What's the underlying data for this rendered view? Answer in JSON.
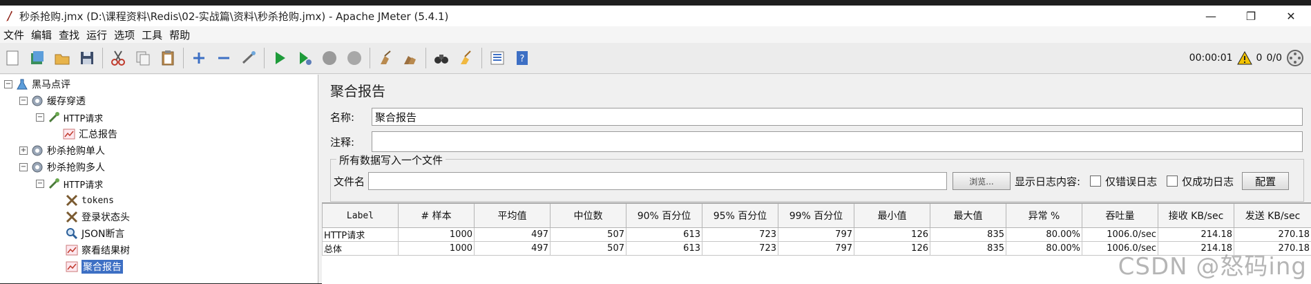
{
  "window": {
    "title": "秒杀抢购.jmx (D:\\课程资料\\Redis\\02-实战篇\\资料\\秒杀抢购.jmx) - Apache JMeter (5.4.1)",
    "minimize": "—",
    "maximize": "❐",
    "close": "✕"
  },
  "menu": [
    "文件",
    "编辑",
    "查找",
    "运行",
    "选项",
    "工具",
    "帮助"
  ],
  "toolbar": {
    "timer": "00:00:01",
    "warnings": "0",
    "threads": "0/0"
  },
  "tree": [
    {
      "label": "黑马点评",
      "icon": "flask-icon",
      "expander": "−"
    },
    {
      "label": "缓存穿透",
      "icon": "gear-icon",
      "expander": "−"
    },
    {
      "label": "HTTP请求",
      "icon": "pipette-icon",
      "expander": "−",
      "mono": true
    },
    {
      "label": "汇总报告",
      "icon": "chart-icon"
    },
    {
      "label": "秒杀抢购单人",
      "icon": "gear-icon",
      "expander": "+"
    },
    {
      "label": "秒杀抢购多人",
      "icon": "gear-icon",
      "expander": "−"
    },
    {
      "label": "HTTP请求",
      "icon": "pipette-icon",
      "expander": "−",
      "mono": true
    },
    {
      "label": "tokens",
      "icon": "tools-icon",
      "mono": true
    },
    {
      "label": "登录状态头",
      "icon": "tools-icon"
    },
    {
      "label": "JSON断言",
      "icon": "magnifier-icon"
    },
    {
      "label": "察看结果树",
      "icon": "chart-icon"
    },
    {
      "label": "聚合报告",
      "icon": "chart-icon",
      "selected": true
    }
  ],
  "panel": {
    "title": "聚合报告",
    "name_label": "名称:",
    "name_value": "聚合报告",
    "comment_label": "注释:",
    "comment_value": "",
    "group_title": "所有数据写入一个文件",
    "filename_label": "文件名",
    "filename_value": "",
    "browse_button": "浏览...",
    "log_label": "显示日志内容:",
    "errors_only": "仅错误日志",
    "success_only": "仅成功日志",
    "config_button": "配置"
  },
  "table": {
    "columns": [
      "Label",
      "# 样本",
      "平均值",
      "中位数",
      "90% 百分位",
      "95% 百分位",
      "99% 百分位",
      "最小值",
      "最大值",
      "异常 %",
      "吞吐量",
      "接收 KB/sec",
      "发送 KB/sec"
    ],
    "rows": [
      [
        "HTTP请求",
        "1000",
        "497",
        "507",
        "613",
        "723",
        "797",
        "126",
        "835",
        "80.00%",
        "1006.0/sec",
        "214.18",
        "270.18"
      ],
      [
        "总体",
        "1000",
        "497",
        "507",
        "613",
        "723",
        "797",
        "126",
        "835",
        "80.00%",
        "1006.0/sec",
        "214.18",
        "270.18"
      ]
    ]
  },
  "watermark": "CSDN @怒码ing",
  "colors": {
    "selection": "#3d6fc4",
    "run_green": "#1e9b3a",
    "warning_yellow": "#f2c200"
  }
}
